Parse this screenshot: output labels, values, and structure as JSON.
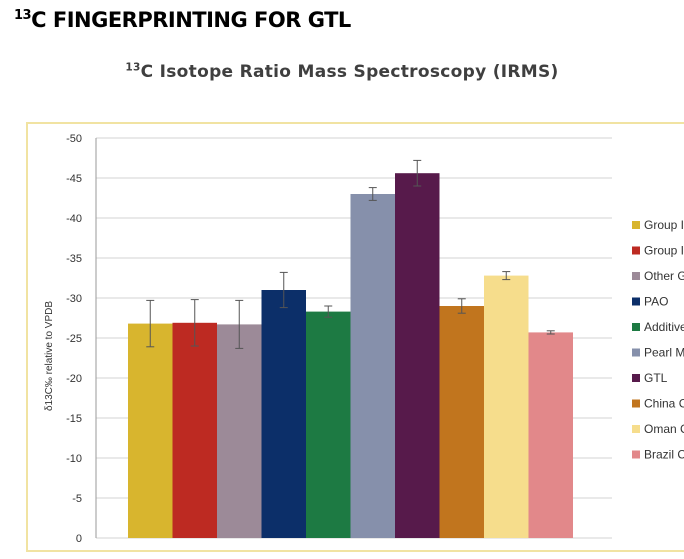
{
  "slide": {
    "title_sup": "13",
    "title_rest": "C FINGERPRINTING FOR GTL"
  },
  "chart": {
    "title_sup": "13",
    "title_rest": "C Isotope Ratio Mass Spectroscopy (IRMS)"
  },
  "chart_data": {
    "type": "bar",
    "title": "13C Isotope Ratio Mass Spectroscopy (IRMS)",
    "ylabel": "δ13C‰ relative to VPDB",
    "xlabel": "",
    "ylim": [
      0,
      -50
    ],
    "y_axis_direction": "reversed: 0 at bottom, -50 at top",
    "y_ticks": [
      "-50",
      "-45",
      "-40",
      "-35",
      "-30",
      "-25",
      "-20",
      "-15",
      "-10",
      "-5",
      "0"
    ],
    "grid": true,
    "legend_position": "right",
    "series": [
      {
        "name": "Group I",
        "value": -26.8,
        "error": 2.9,
        "color": "#d8b52e"
      },
      {
        "name": "Group I",
        "value": -26.9,
        "error": 2.9,
        "color": "#bd2a22"
      },
      {
        "name": "Other G",
        "value": -26.7,
        "error": 3.0,
        "color": "#9c8a98"
      },
      {
        "name": "PAO",
        "value": -31.0,
        "error": 2.2,
        "color": "#0c2f69"
      },
      {
        "name": "Additive",
        "value": -28.3,
        "error": 0.7,
        "color": "#1d7a43"
      },
      {
        "name": "Pearl M",
        "value": -43.0,
        "error": 0.8,
        "color": "#8690ab"
      },
      {
        "name": "GTL",
        "value": -45.6,
        "error": 1.6,
        "color": "#571a4b"
      },
      {
        "name": "China C",
        "value": -29.0,
        "error": 0.9,
        "color": "#c1751e"
      },
      {
        "name": "Oman C",
        "value": -32.8,
        "error": 0.5,
        "color": "#f6dd8c"
      },
      {
        "name": "Brazil C",
        "value": -25.7,
        "error": 0.2,
        "color": "#e2888a"
      }
    ]
  },
  "colors": {
    "frame_border": "#f1e3a2",
    "gridline": "#d3d3d3",
    "axis": "#9a9a9a",
    "error_bar": "#555555"
  }
}
